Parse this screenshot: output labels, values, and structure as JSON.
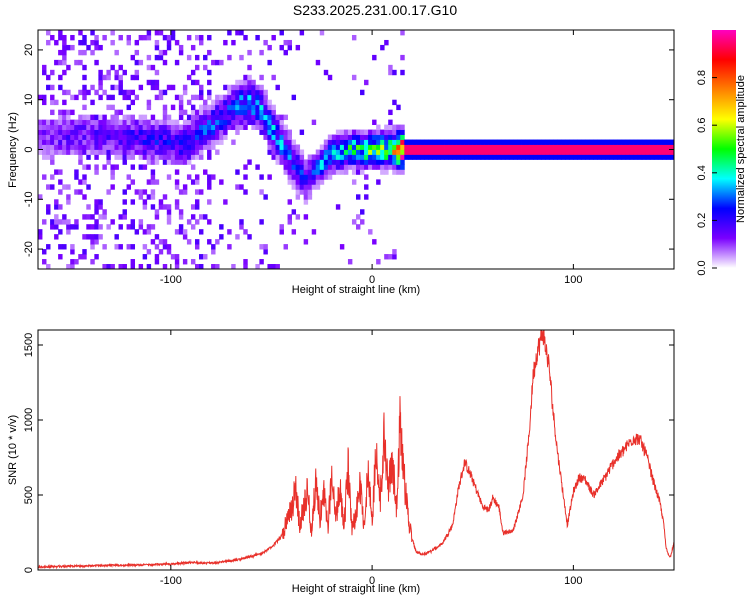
{
  "title": "S233.2025.231.00.17.G10",
  "chart_data": [
    {
      "type": "heatmap",
      "xlabel": "Height of straight line (km)",
      "ylabel": "Frequency (Hz)",
      "xlim": [
        -166,
        150
      ],
      "ylim": [
        -24,
        24
      ],
      "xticks": [
        -100,
        0,
        100
      ],
      "yticks": [
        -20,
        -10,
        0,
        10,
        20
      ],
      "ridge_x": [
        -166,
        -150,
        -130,
        -110,
        -95,
        -80,
        -70,
        -62,
        -55,
        -48,
        -40,
        -33,
        -28,
        -20,
        -10,
        0,
        10,
        14,
        50,
        150
      ],
      "ridge_y": [
        2,
        3,
        3,
        2,
        1,
        5,
        8,
        10,
        8,
        3,
        -2,
        -6,
        -4,
        -1,
        0,
        0,
        0,
        0,
        0,
        0
      ],
      "ridge_amplitude": [
        0.1,
        0.15,
        0.15,
        0.2,
        0.2,
        0.25,
        0.25,
        0.3,
        0.3,
        0.3,
        0.25,
        0.2,
        0.25,
        0.35,
        0.4,
        0.45,
        0.5,
        0.95,
        0.95,
        0.95
      ],
      "colorbar": {
        "label": "Normalized spectral amplitude",
        "range": [
          0,
          1
        ],
        "ticks": [
          0.0,
          0.2,
          0.4,
          0.6,
          0.8
        ],
        "colors": [
          "#ffffff",
          "#7a00ff",
          "#0000ff",
          "#00ffff",
          "#00ff00",
          "#ffff00",
          "#ff8000",
          "#ff0000",
          "#ff00c0"
        ]
      }
    },
    {
      "type": "line",
      "xlabel": "Height of straight line (km)",
      "ylabel": "SNR (10 * v/v)",
      "xlim": [
        -166,
        150
      ],
      "ylim": [
        0,
        1600
      ],
      "xticks": [
        -100,
        0,
        100
      ],
      "yticks": [
        0,
        500,
        1000,
        1500
      ],
      "color": "#e8302a",
      "x": [
        -166,
        -150,
        -130,
        -110,
        -100,
        -90,
        -80,
        -70,
        -60,
        -55,
        -50,
        -45,
        -40,
        -38,
        -36,
        -34,
        -32,
        -30,
        -28,
        -26,
        -24,
        -22,
        -20,
        -18,
        -16,
        -14,
        -12,
        -10,
        -8,
        -6,
        -4,
        -2,
        0,
        2,
        4,
        6,
        8,
        10,
        12,
        14,
        16,
        18,
        20,
        22,
        25,
        30,
        35,
        40,
        43,
        46,
        50,
        55,
        58,
        60,
        63,
        65,
        70,
        75,
        78,
        80,
        82,
        84,
        85,
        86,
        88,
        90,
        92,
        95,
        97,
        100,
        103,
        106,
        110,
        115,
        120,
        125,
        128,
        130,
        133,
        136,
        140,
        143,
        145,
        146,
        148,
        150
      ],
      "y": [
        20,
        25,
        30,
        35,
        40,
        50,
        45,
        60,
        90,
        110,
        150,
        230,
        400,
        560,
        300,
        420,
        520,
        250,
        600,
        350,
        500,
        280,
        650,
        320,
        560,
        250,
        700,
        300,
        380,
        580,
        300,
        650,
        350,
        780,
        450,
        900,
        520,
        750,
        400,
        1040,
        600,
        350,
        200,
        120,
        100,
        130,
        180,
        300,
        550,
        720,
        600,
        420,
        400,
        480,
        420,
        250,
        260,
        500,
        900,
        1300,
        1450,
        1550,
        1580,
        1500,
        1350,
        1050,
        800,
        500,
        300,
        520,
        620,
        600,
        500,
        600,
        720,
        800,
        850,
        880,
        870,
        780,
        580,
        450,
        300,
        150,
        80,
        180
      ]
    }
  ]
}
